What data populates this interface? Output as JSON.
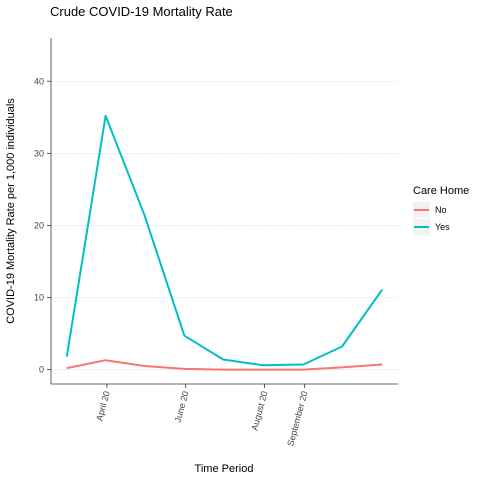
{
  "chart_data": {
    "type": "line",
    "title": "Crude COVID-19 Mortality Rate",
    "xlabel": "Time Period",
    "ylabel": "COVID-19 Mortality Rate per 1,000 individuals",
    "x_ticks": [
      "April 20",
      "June 20",
      "August 20",
      "September 20"
    ],
    "y_ticks": [
      0,
      10,
      20,
      30,
      40
    ],
    "ylim": [
      -2,
      46
    ],
    "grid": "horizontal",
    "legend": {
      "title": "Care Home",
      "position": "right"
    },
    "series": [
      {
        "name": "No",
        "color": "#F8766D",
        "points": [
          {
            "x": "2020-03-01",
            "y": 0.2
          },
          {
            "x": "2020-03-31",
            "y": 1.3
          },
          {
            "x": "2020-04-30",
            "y": 0.5
          },
          {
            "x": "2020-05-31",
            "y": 0.1
          },
          {
            "x": "2020-06-30",
            "y": 0.0
          },
          {
            "x": "2020-07-31",
            "y": 0.0
          },
          {
            "x": "2020-08-31",
            "y": 0.0
          },
          {
            "x": "2020-09-30",
            "y": 0.3
          },
          {
            "x": "2020-10-31",
            "y": 0.7
          }
        ]
      },
      {
        "name": "Yes",
        "color": "#00BFC4",
        "points": [
          {
            "x": "2020-03-01",
            "y": 1.8
          },
          {
            "x": "2020-03-31",
            "y": 35.2
          },
          {
            "x": "2020-04-30",
            "y": 21.5
          },
          {
            "x": "2020-05-31",
            "y": 4.7
          },
          {
            "x": "2020-06-30",
            "y": 1.4
          },
          {
            "x": "2020-07-31",
            "y": 0.6
          },
          {
            "x": "2020-08-31",
            "y": 0.7
          },
          {
            "x": "2020-09-30",
            "y": 3.2
          },
          {
            "x": "2020-10-31",
            "y": 11.1
          }
        ]
      }
    ]
  }
}
